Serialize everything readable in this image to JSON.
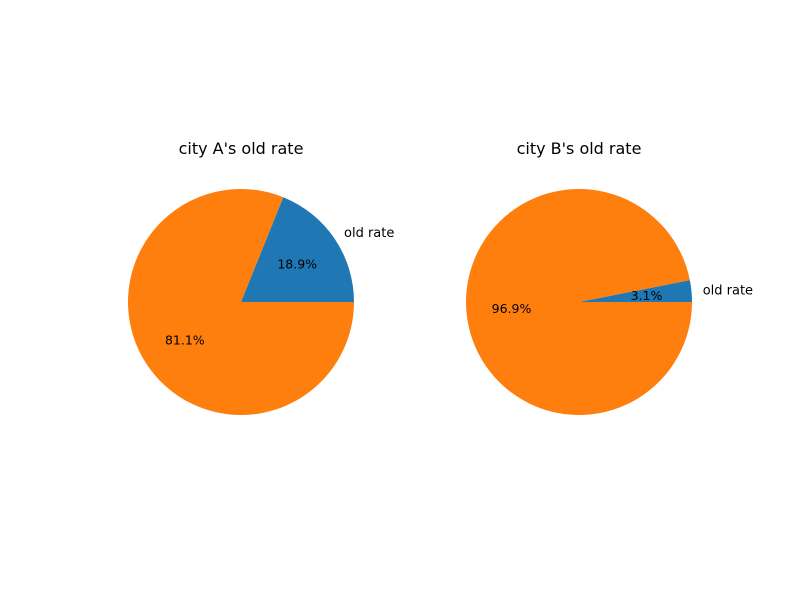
{
  "chart_data": [
    {
      "type": "pie",
      "title": "city A's old rate",
      "labels": [
        "old rate",
        ""
      ],
      "values": [
        18.9,
        81.1
      ],
      "autopct": [
        "18.9%",
        "81.1%"
      ],
      "colors": [
        "#1f77b4",
        "#ff7f0e"
      ],
      "start_angle": 0,
      "direction": "counterclockwise"
    },
    {
      "type": "pie",
      "title": "city B's old rate",
      "labels": [
        "old rate",
        ""
      ],
      "values": [
        3.1,
        96.9
      ],
      "autopct": [
        "3.1%",
        "96.9%"
      ],
      "colors": [
        "#1f77b4",
        "#ff7f0e"
      ],
      "start_angle": 0,
      "direction": "counterclockwise"
    }
  ]
}
